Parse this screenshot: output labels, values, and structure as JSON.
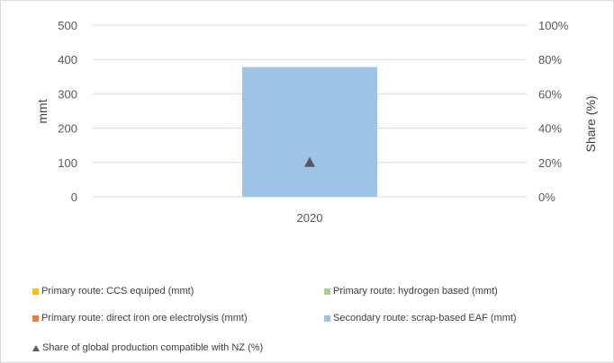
{
  "chart_data": {
    "type": "bar",
    "categories": [
      "2020"
    ],
    "ylabel": "mmt",
    "y2label": "Share (%)",
    "ylim": [
      0,
      500
    ],
    "yticks": [
      0,
      100,
      200,
      300,
      400,
      500
    ],
    "y2lim": [
      0,
      100
    ],
    "y2ticks": [
      "0%",
      "20%",
      "40%",
      "60%",
      "80%",
      "100%"
    ],
    "grid": true,
    "legend_position": "bottom",
    "series": [
      {
        "name": "Primary route: CCS equiped (mmt)",
        "values": [
          0
        ],
        "color": "#ffc000",
        "kind": "bar"
      },
      {
        "name": "Primary route: hydrogen based (mmt)",
        "values": [
          0
        ],
        "color": "#a9d18e",
        "kind": "bar"
      },
      {
        "name": "Primary route: direct iron ore electrolysis (mmt)",
        "values": [
          0
        ],
        "color": "#ed7d31",
        "kind": "bar"
      },
      {
        "name": "Secondary route: scrap-based EAF (mmt)",
        "values": [
          378
        ],
        "color": "#9dc3e6",
        "kind": "bar"
      },
      {
        "name": "Share of global production compatible with NZ (%)",
        "values": [
          20
        ],
        "color": "#595959",
        "kind": "marker",
        "axis": "secondary"
      }
    ]
  }
}
